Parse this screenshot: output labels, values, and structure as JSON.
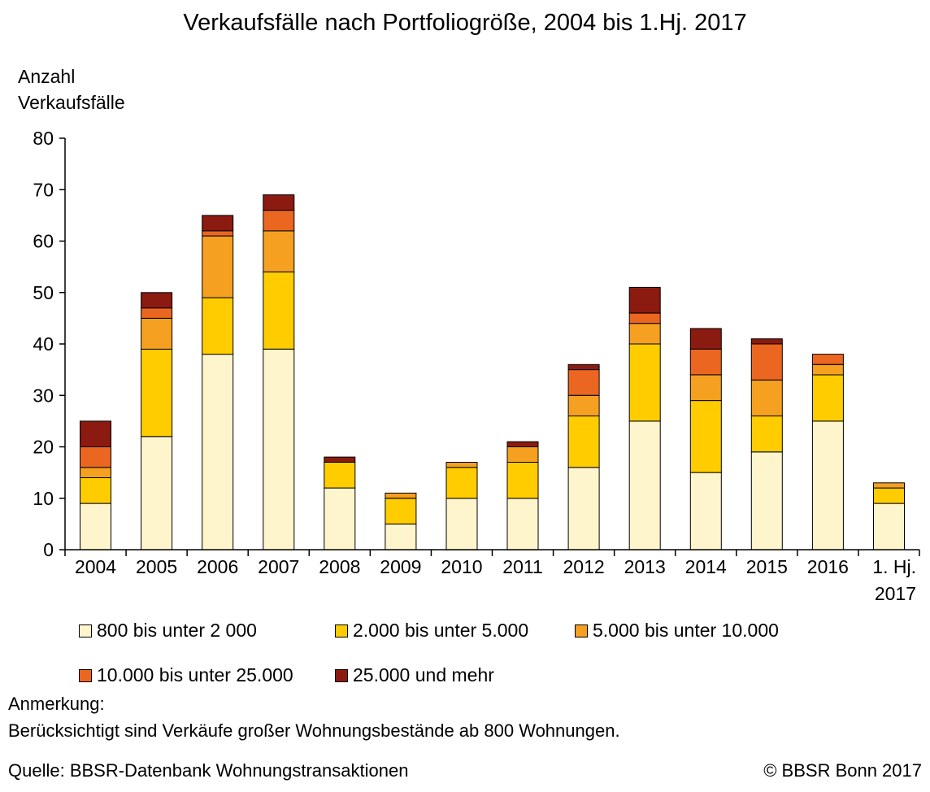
{
  "chart_data": {
    "type": "bar",
    "stacked": true,
    "title": "Verkaufsfälle nach Portfoliogröße, 2004 bis 1.Hj. 2017",
    "ylabel_lines": [
      "Anzahl",
      "Verkaufsfälle"
    ],
    "xlabel": "",
    "ylim": [
      0,
      80
    ],
    "yticks": [
      0,
      10,
      20,
      30,
      40,
      50,
      60,
      70,
      80
    ],
    "grid": false,
    "legend_placement": "bottom",
    "categories": [
      "2004",
      "2005",
      "2006",
      "2007",
      "2008",
      "2009",
      "2010",
      "2011",
      "2012",
      "2013",
      "2014",
      "2015",
      "2016",
      "1. Hj.\n2017"
    ],
    "series": [
      {
        "name": "800 bis unter 2 000",
        "color": "#FFF5CC",
        "values": [
          9,
          22,
          38,
          39,
          12,
          5,
          10,
          10,
          16,
          25,
          15,
          19,
          25,
          9
        ]
      },
      {
        "name": "2.000 bis unter 5.000",
        "color": "#FFCC00",
        "values": [
          5,
          17,
          11,
          15,
          5,
          5,
          6,
          7,
          10,
          15,
          14,
          7,
          9,
          3
        ]
      },
      {
        "name": "5.000 bis unter 10.000",
        "color": "#F5A020",
        "values": [
          2,
          6,
          12,
          8,
          0,
          1,
          1,
          3,
          4,
          4,
          5,
          7,
          2,
          1
        ]
      },
      {
        "name": "10.000 bis unter 25.000",
        "color": "#EB6620",
        "values": [
          4,
          2,
          1,
          4,
          0,
          0,
          0,
          0,
          5,
          2,
          5,
          7,
          2,
          0
        ]
      },
      {
        "name": "25.000 und mehr",
        "color": "#8B1A10",
        "values": [
          5,
          3,
          3,
          3,
          1,
          0,
          0,
          1,
          1,
          5,
          4,
          1,
          0,
          0
        ]
      }
    ]
  },
  "footer": {
    "note_label": "Anmerkung:",
    "note_text": "Berücksichtigt sind Verkäufe großer Wohnungsbestände ab 800 Wohnungen.",
    "source": "Quelle: BBSR-Datenbank Wohnungstransaktionen",
    "copyright": "© BBSR Bonn 2017"
  }
}
